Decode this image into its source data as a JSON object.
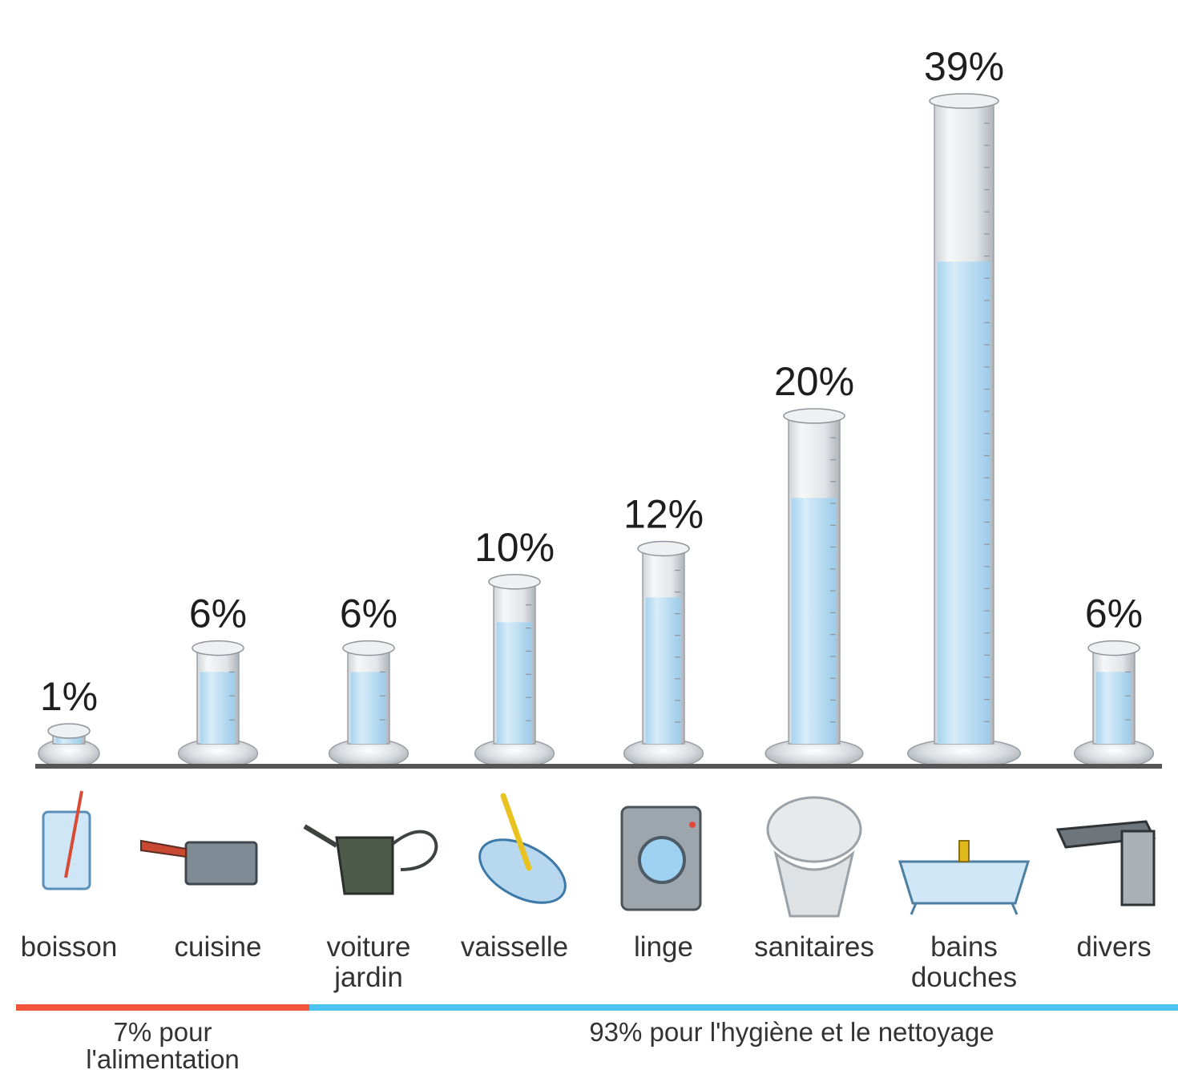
{
  "chart_data": {
    "type": "bar",
    "title": "",
    "categories": [
      {
        "lines": [
          "boisson"
        ],
        "icon": "glass-icon"
      },
      {
        "lines": [
          "cuisine"
        ],
        "icon": "saucepan-icon"
      },
      {
        "lines": [
          "voiture",
          "jardin"
        ],
        "icon": "watering-can-icon"
      },
      {
        "lines": [
          "vaisselle"
        ],
        "icon": "plate-icon"
      },
      {
        "lines": [
          "linge"
        ],
        "icon": "washing-machine-icon"
      },
      {
        "lines": [
          "sanitaires"
        ],
        "icon": "toilet-icon"
      },
      {
        "lines": [
          "bains",
          "douches"
        ],
        "icon": "bathtub-icon"
      },
      {
        "lines": [
          "divers"
        ],
        "icon": "faucet-icon"
      }
    ],
    "values": [
      1,
      6,
      6,
      10,
      12,
      20,
      39,
      6
    ],
    "value_labels": [
      "1%",
      "6%",
      "6%",
      "10%",
      "12%",
      "20%",
      "39%",
      "6%"
    ],
    "groups": [
      {
        "lines": [
          "7% pour",
          "l'alimentation"
        ],
        "value": 7,
        "color": "#f2553c",
        "categories": [
          "boisson",
          "cuisine"
        ]
      },
      {
        "lines": [
          "93% pour l'hygiène et le nettoyage"
        ],
        "value": 93,
        "color": "#4fc3ef",
        "categories": [
          "voiture jardin",
          "vaisselle",
          "linge",
          "sanitaires",
          "bains douches",
          "divers"
        ]
      }
    ],
    "colors": {
      "water": "#bfe0f4",
      "glass": "#e4e6e9",
      "baseline": "#555555"
    }
  }
}
